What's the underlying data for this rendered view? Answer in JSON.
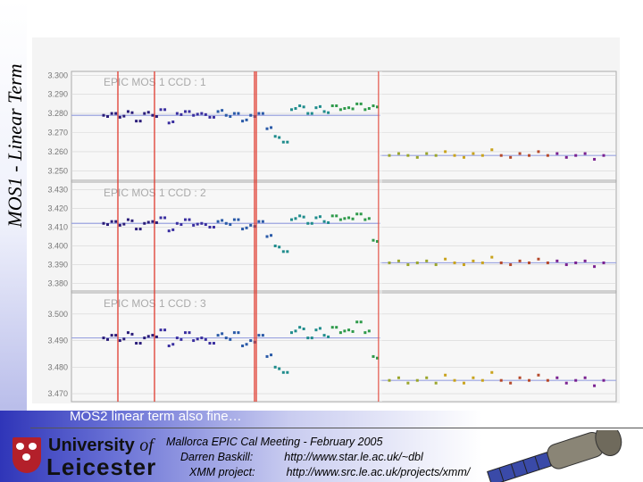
{
  "slide": {
    "title": "MOS1 - Linear Term",
    "caption": "MOS2 linear term also fine…",
    "footer_line1": "Mallorca EPIC Cal Meeting - February 2005",
    "footer_name": "Darren Baskill:",
    "footer_url1": "http://www.star.le.ac.uk/~dbl",
    "footer_project": "XMM project:",
    "footer_url2": "http://www.src.le.ac.uk/projects/xmm/",
    "logo_line1": "University",
    "logo_of": "of",
    "logo_line2": "Leicester"
  },
  "colors": {
    "accent": "#2f35b8",
    "vline": "#e03a2e",
    "fitline": "#9aa3e0"
  },
  "chart_data": [
    {
      "type": "scatter",
      "panel_label": "EPIC  MOS 1    CCD : 1",
      "yticks": [
        "3.300",
        "3.290",
        "3.280",
        "3.270",
        "3.260",
        "3.250"
      ],
      "ylim": [
        3.245,
        3.302
      ],
      "fit_before": 3.279,
      "fit_after": 3.258,
      "points_before": [
        3.279,
        3.28,
        3.278,
        3.281,
        3.276,
        3.28,
        3.279,
        3.282,
        3.275,
        3.28,
        3.281,
        3.279,
        3.28,
        3.278,
        3.281,
        3.279,
        3.28,
        3.276,
        3.279,
        3.28,
        3.272,
        3.268,
        3.265,
        3.282,
        3.284,
        3.28,
        3.283,
        3.281,
        3.284,
        3.282,
        3.283,
        3.285,
        3.282,
        3.284
      ],
      "points_after": [
        3.258,
        3.259,
        3.258,
        3.257,
        3.259,
        3.258,
        3.26,
        3.258,
        3.257,
        3.259,
        3.258,
        3.261,
        3.258,
        3.257,
        3.259,
        3.258,
        3.26,
        3.258,
        3.259,
        3.257,
        3.258,
        3.259,
        3.256,
        3.258
      ]
    },
    {
      "type": "scatter",
      "panel_label": "EPIC  MOS 1    CCD : 2",
      "yticks": [
        "3.430",
        "3.420",
        "3.410",
        "3.400",
        "3.390",
        "3.380"
      ],
      "ylim": [
        3.376,
        3.434
      ],
      "fit_before": 3.412,
      "fit_after": 3.391,
      "points_before": [
        3.412,
        3.413,
        3.411,
        3.414,
        3.409,
        3.412,
        3.413,
        3.415,
        3.408,
        3.412,
        3.414,
        3.411,
        3.412,
        3.41,
        3.413,
        3.412,
        3.414,
        3.409,
        3.411,
        3.413,
        3.405,
        3.4,
        3.397,
        3.414,
        3.416,
        3.412,
        3.415,
        3.413,
        3.416,
        3.414,
        3.415,
        3.417,
        3.414,
        3.403
      ],
      "points_after": [
        3.391,
        3.392,
        3.39,
        3.391,
        3.392,
        3.39,
        3.393,
        3.391,
        3.39,
        3.392,
        3.391,
        3.394,
        3.391,
        3.39,
        3.392,
        3.391,
        3.393,
        3.391,
        3.392,
        3.39,
        3.391,
        3.392,
        3.389,
        3.391
      ]
    },
    {
      "type": "scatter",
      "panel_label": "EPIC  MOS 1    CCD : 3",
      "yticks": [
        "3.500",
        "3.490",
        "3.480",
        "3.470"
      ],
      "ylim": [
        3.467,
        3.508
      ],
      "fit_before": 3.491,
      "fit_after": 3.475,
      "points_before": [
        3.491,
        3.492,
        3.49,
        3.493,
        3.489,
        3.491,
        3.492,
        3.494,
        3.488,
        3.491,
        3.493,
        3.49,
        3.491,
        3.489,
        3.492,
        3.491,
        3.493,
        3.488,
        3.49,
        3.492,
        3.484,
        3.48,
        3.478,
        3.493,
        3.495,
        3.491,
        3.494,
        3.492,
        3.495,
        3.493,
        3.494,
        3.497,
        3.493,
        3.484
      ],
      "points_after": [
        3.475,
        3.476,
        3.474,
        3.475,
        3.476,
        3.474,
        3.477,
        3.475,
        3.474,
        3.476,
        3.475,
        3.478,
        3.475,
        3.474,
        3.476,
        3.475,
        3.477,
        3.475,
        3.476,
        3.474,
        3.475,
        3.476,
        3.473,
        3.475
      ]
    }
  ]
}
